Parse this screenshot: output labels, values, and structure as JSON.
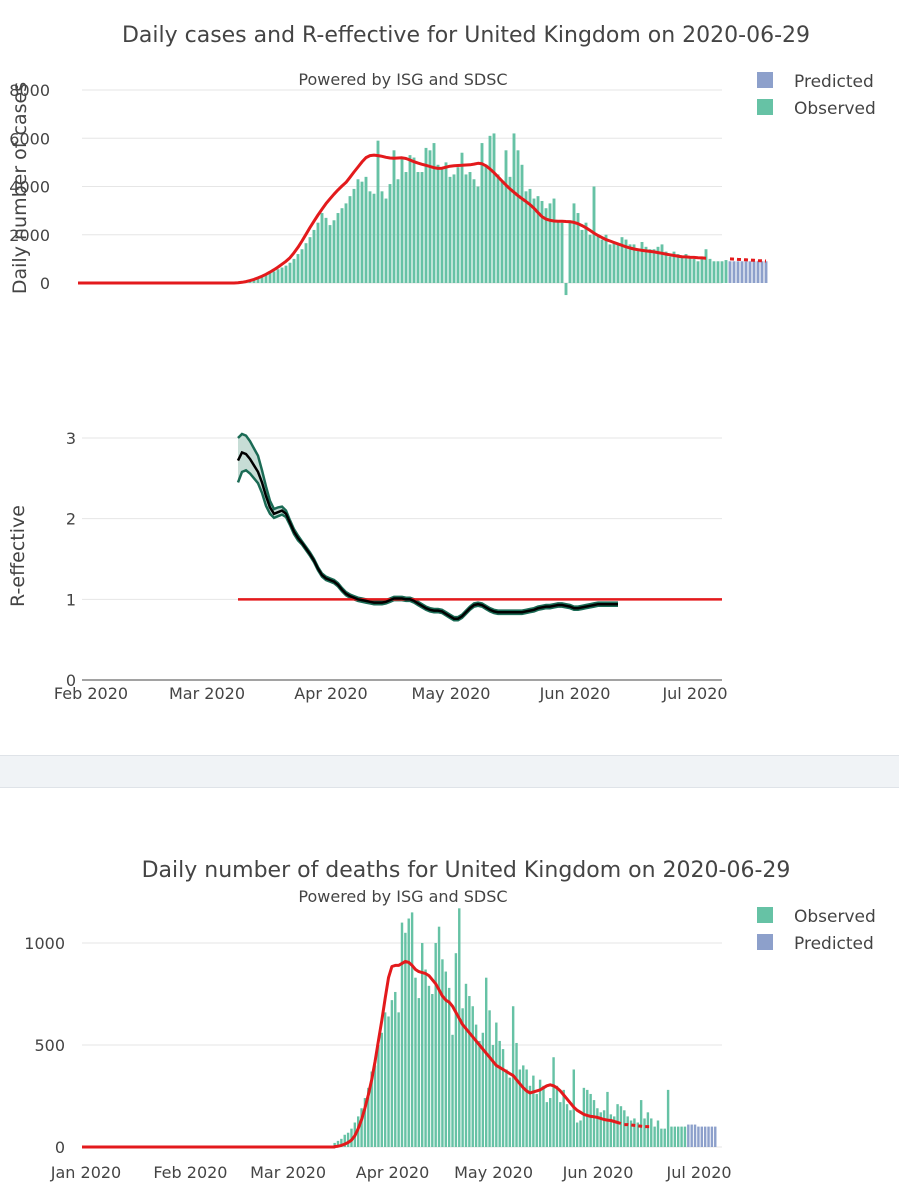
{
  "panel1": {
    "title": "Daily cases and R-effective for United Kingdom on 2020-06-29",
    "subtitle": "Powered by ISG and SDSC"
  },
  "panel2": {
    "title": "Daily number of deaths for United Kingdom on 2020-06-29",
    "subtitle": "Powered by ISG and SDSC"
  },
  "colors": {
    "observed": "#66c2a5",
    "predicted": "#8da0cb",
    "trend": "#e31a1c",
    "r_line": "#000000",
    "r_band_edge": "#1b6b55",
    "r_band_fill": "#c7ddd6"
  },
  "chart_data": [
    {
      "type": "bar",
      "name": "cases",
      "title": "Daily cases and R-effective for United Kingdom on 2020-06-29",
      "subtitle": "Powered by ISG and SDSC",
      "ylabel": "Daily number of cases",
      "ylim": [
        -600,
        8800
      ],
      "yticks": [
        0,
        2000,
        4000,
        6000,
        8000
      ],
      "ytick_labels": [
        "0",
        "2000",
        "4000",
        "6000",
        "8000"
      ],
      "legend": [
        "Predicted",
        "Observed"
      ],
      "legend_position": "top-right",
      "start_date": "2020-01-30",
      "observed": [
        0,
        0,
        0,
        0,
        0,
        0,
        0,
        0,
        0,
        0,
        0,
        0,
        0,
        0,
        0,
        0,
        0,
        0,
        0,
        0,
        0,
        0,
        0,
        0,
        0,
        0,
        0,
        0,
        0,
        0,
        0,
        0,
        0,
        0,
        0,
        0,
        0,
        0,
        0,
        0,
        50,
        70,
        100,
        130,
        160,
        210,
        260,
        340,
        420,
        480,
        570,
        640,
        720,
        840,
        1000,
        1200,
        1400,
        1650,
        1900,
        2200,
        2500,
        2900,
        2700,
        2400,
        2600,
        2900,
        3100,
        3300,
        3600,
        3900,
        4300,
        4200,
        4400,
        3800,
        3700,
        5900,
        3800,
        3500,
        4100,
        5500,
        4300,
        5200,
        4600,
        5300,
        5200,
        4600,
        4600,
        5600,
        5500,
        5800,
        4900,
        4800,
        5000,
        4400,
        4500,
        4800,
        5400,
        4500,
        4600,
        4300,
        4000,
        5800,
        4900,
        6100,
        6200,
        4500,
        4200,
        5500,
        4400,
        6200,
        5500,
        4900,
        3800,
        3900,
        3500,
        3600,
        3400,
        3100,
        3300,
        3500,
        2600,
        2500,
        -500,
        2600,
        3300,
        2900,
        2200,
        2500,
        2000,
        4000,
        2000,
        1800,
        2000,
        1600,
        1700,
        1600,
        1900,
        1800,
        1600,
        1600,
        1400,
        1700,
        1500,
        1400,
        1400,
        1500,
        1600,
        1300,
        1100,
        1300,
        1200,
        1100,
        1200,
        1100,
        1000,
        900,
        1000,
        1400,
        1000,
        900,
        900,
        900,
        950
      ],
      "predicted": [
        900,
        900,
        900,
        900,
        900,
        900,
        900,
        900,
        900,
        900
      ],
      "trend": [
        0,
        0,
        0,
        0,
        0,
        0,
        0,
        0,
        0,
        0,
        0,
        0,
        0,
        0,
        0,
        0,
        0,
        0,
        0,
        0,
        0,
        0,
        0,
        0,
        0,
        0,
        0,
        0,
        0,
        0,
        0,
        0,
        0,
        0,
        0,
        0,
        0,
        0,
        0,
        0,
        10,
        30,
        60,
        100,
        150,
        210,
        280,
        360,
        450,
        550,
        660,
        780,
        900,
        1050,
        1250,
        1480,
        1740,
        2020,
        2300,
        2560,
        2820,
        3060,
        3290,
        3490,
        3680,
        3860,
        4020,
        4170,
        4380,
        4600,
        4810,
        5020,
        5200,
        5280,
        5300,
        5280,
        5250,
        5210,
        5180,
        5170,
        5180,
        5190,
        5160,
        5100,
        5030,
        4970,
        4920,
        4880,
        4830,
        4780,
        4750,
        4760,
        4800,
        4840,
        4860,
        4870,
        4880,
        4890,
        4900,
        4930,
        4960,
        4940,
        4860,
        4730,
        4570,
        4400,
        4230,
        4060,
        3900,
        3760,
        3620,
        3500,
        3380,
        3250,
        3100,
        2920,
        2750,
        2650,
        2600,
        2570,
        2560,
        2560,
        2550,
        2540,
        2510,
        2460,
        2380,
        2290,
        2180,
        2070,
        1970,
        1880,
        1800,
        1740,
        1680,
        1620,
        1560,
        1500,
        1450,
        1410,
        1380,
        1350,
        1330,
        1310,
        1290,
        1260,
        1230,
        1200,
        1170,
        1140,
        1110,
        1090,
        1080,
        1070,
        1060,
        1050,
        1040,
        1030
      ],
      "trend_predicted": [
        1000,
        990,
        980,
        970,
        960,
        950,
        940,
        930,
        920,
        910
      ]
    },
    {
      "type": "line",
      "name": "r_effective",
      "ylabel": "R-effective",
      "ylim": [
        0,
        3.1
      ],
      "yticks": [
        0,
        1,
        2,
        3
      ],
      "ytick_labels": [
        "0",
        "1",
        "2",
        "3"
      ],
      "xtick_labels": [
        "Feb 2020",
        "Mar 2020",
        "Apr 2020",
        "May 2020",
        "Jun 2020",
        "Jul 2020"
      ],
      "xtick_dates": [
        "2020-02-01",
        "2020-03-01",
        "2020-04-01",
        "2020-05-01",
        "2020-06-01",
        "2020-07-01"
      ],
      "xlim": [
        "2020-01-31",
        "2020-07-09"
      ],
      "start_date": "2020-03-10",
      "r": [
        2.72,
        2.82,
        2.8,
        2.74,
        2.66,
        2.58,
        2.45,
        2.28,
        2.14,
        2.06,
        2.08,
        2.1,
        2.06,
        1.95,
        1.84,
        1.76,
        1.7,
        1.63,
        1.56,
        1.48,
        1.38,
        1.3,
        1.26,
        1.24,
        1.22,
        1.18,
        1.12,
        1.07,
        1.04,
        1.02,
        1.0,
        0.99,
        0.98,
        0.97,
        0.96,
        0.96,
        0.96,
        0.97,
        0.99,
        1.01,
        1.01,
        1.01,
        1.0,
        1.0,
        0.98,
        0.95,
        0.92,
        0.89,
        0.87,
        0.86,
        0.86,
        0.85,
        0.82,
        0.79,
        0.76,
        0.76,
        0.79,
        0.84,
        0.89,
        0.93,
        0.94,
        0.93,
        0.9,
        0.87,
        0.85,
        0.84,
        0.84,
        0.84,
        0.84,
        0.84,
        0.84,
        0.84,
        0.85,
        0.86,
        0.87,
        0.89,
        0.9,
        0.91,
        0.91,
        0.92,
        0.93,
        0.93,
        0.92,
        0.91,
        0.89,
        0.89,
        0.9,
        0.91,
        0.92,
        0.93,
        0.94,
        0.94,
        0.94,
        0.94,
        0.94,
        0.94
      ],
      "r_upper": [
        3.0,
        3.05,
        3.03,
        2.96,
        2.87,
        2.78,
        2.6,
        2.4,
        2.22,
        2.12,
        2.14,
        2.15,
        2.1,
        1.98,
        1.87,
        1.79,
        1.72,
        1.65,
        1.58,
        1.5,
        1.4,
        1.32,
        1.28,
        1.26,
        1.24,
        1.2,
        1.14,
        1.09,
        1.06,
        1.04,
        1.02,
        1.01,
        1.0,
        0.99,
        0.98,
        0.98,
        0.98,
        0.99,
        1.01,
        1.03,
        1.03,
        1.03,
        1.02,
        1.02,
        1.0,
        0.97,
        0.94,
        0.91,
        0.89,
        0.88,
        0.88,
        0.87,
        0.84,
        0.81,
        0.78,
        0.78,
        0.81,
        0.86,
        0.91,
        0.95,
        0.96,
        0.95,
        0.92,
        0.89,
        0.87,
        0.86,
        0.86,
        0.86,
        0.86,
        0.86,
        0.86,
        0.86,
        0.87,
        0.88,
        0.89,
        0.91,
        0.92,
        0.93,
        0.93,
        0.94,
        0.95,
        0.95,
        0.94,
        0.93,
        0.91,
        0.91,
        0.92,
        0.93,
        0.94,
        0.95,
        0.96,
        0.96,
        0.96,
        0.96,
        0.96,
        0.96
      ],
      "r_lower": [
        2.45,
        2.58,
        2.6,
        2.56,
        2.5,
        2.44,
        2.32,
        2.16,
        2.06,
        2.01,
        2.03,
        2.05,
        2.02,
        1.92,
        1.81,
        1.73,
        1.68,
        1.61,
        1.54,
        1.46,
        1.36,
        1.28,
        1.24,
        1.22,
        1.2,
        1.16,
        1.1,
        1.05,
        1.02,
        1.0,
        0.98,
        0.97,
        0.96,
        0.95,
        0.94,
        0.94,
        0.94,
        0.95,
        0.97,
        0.99,
        0.99,
        0.99,
        0.98,
        0.98,
        0.96,
        0.93,
        0.9,
        0.87,
        0.85,
        0.84,
        0.84,
        0.83,
        0.8,
        0.77,
        0.74,
        0.74,
        0.77,
        0.82,
        0.87,
        0.91,
        0.92,
        0.91,
        0.88,
        0.85,
        0.83,
        0.82,
        0.82,
        0.82,
        0.82,
        0.82,
        0.82,
        0.82,
        0.83,
        0.84,
        0.85,
        0.87,
        0.88,
        0.89,
        0.89,
        0.9,
        0.91,
        0.91,
        0.9,
        0.89,
        0.87,
        0.87,
        0.88,
        0.89,
        0.9,
        0.91,
        0.92,
        0.92,
        0.92,
        0.92,
        0.92,
        0.92
      ],
      "reference_line": 1
    },
    {
      "type": "bar",
      "name": "deaths",
      "title": "Daily number of deaths for United Kingdom on 2020-06-29",
      "subtitle": "Powered by ISG and SDSC",
      "ylabel": "",
      "ylim": [
        -20,
        1220
      ],
      "yticks": [
        0,
        500,
        1000
      ],
      "ytick_labels": [
        "0",
        "500",
        "1000"
      ],
      "xtick_labels": [
        "Jan 2020",
        "Feb 2020",
        "Mar 2020",
        "Apr 2020",
        "May 2020",
        "Jun 2020",
        "Jul 2020"
      ],
      "xtick_dates": [
        "2020-01-01",
        "2020-02-01",
        "2020-03-01",
        "2020-04-01",
        "2020-05-01",
        "2020-06-01",
        "2020-07-01"
      ],
      "xlim": [
        "2020-01-01",
        "2020-07-09"
      ],
      "legend": [
        "Observed",
        "Predicted"
      ],
      "legend_position": "top-right",
      "start_date": "2020-03-16",
      "observed": [
        20,
        30,
        40,
        60,
        70,
        90,
        120,
        150,
        190,
        240,
        290,
        370,
        400,
        500,
        560,
        660,
        640,
        720,
        760,
        660,
        1100,
        1050,
        1120,
        1150,
        830,
        730,
        1000,
        870,
        790,
        750,
        1000,
        1080,
        920,
        860,
        780,
        550,
        950,
        1170,
        680,
        800,
        740,
        690,
        600,
        520,
        560,
        830,
        670,
        500,
        610,
        520,
        480,
        380,
        340,
        690,
        510,
        380,
        400,
        380,
        300,
        350,
        260,
        330,
        300,
        220,
        240,
        440,
        300,
        220,
        280,
        210,
        180,
        380,
        120,
        130,
        290,
        280,
        260,
        230,
        190,
        170,
        180,
        270,
        160,
        150,
        210,
        200,
        180,
        150,
        130,
        140,
        120,
        230,
        140,
        170,
        140,
        100,
        130,
        90,
        90,
        280,
        100,
        100,
        100,
        100,
        100
      ],
      "predicted": [
        110,
        110,
        110,
        100,
        100,
        100,
        100,
        100,
        100
      ],
      "trend": [
        2,
        4,
        8,
        14,
        22,
        34,
        55,
        90,
        135,
        190,
        255,
        330,
        420,
        520,
        620,
        730,
        830,
        885,
        890,
        890,
        900,
        910,
        905,
        890,
        870,
        860,
        855,
        850,
        840,
        820,
        800,
        770,
        740,
        720,
        710,
        690,
        660,
        630,
        600,
        580,
        560,
        540,
        520,
        500,
        480,
        460,
        440,
        420,
        400,
        390,
        380,
        370,
        360,
        350,
        330,
        310,
        290,
        275,
        265,
        270,
        275,
        280,
        290,
        300,
        305,
        300,
        290,
        275,
        255,
        235,
        215,
        195,
        180,
        170,
        160,
        155,
        150,
        148,
        145,
        140,
        135,
        132,
        130,
        125,
        120,
        115
      ],
      "trend_predicted": [
        110,
        110,
        108,
        106,
        104,
        102,
        100,
        100,
        100
      ]
    }
  ]
}
